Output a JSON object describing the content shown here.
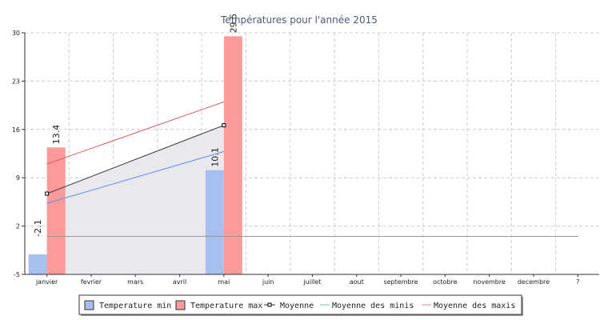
{
  "chart_data": {
    "type": "bar",
    "title": "Températures pour l'année 2015",
    "categories": [
      "janvier",
      "fevrier",
      "mars",
      "avril",
      "mai",
      "juin",
      "juillet",
      "aout",
      "septembre",
      "octobre",
      "novembre",
      "decembre",
      "?"
    ],
    "y_ticks": [
      "30",
      "23",
      "16",
      "9",
      "2",
      "-5"
    ],
    "ylim": [
      -5,
      30
    ],
    "grid": true,
    "legend_position": "bottom",
    "series": [
      {
        "name": "Temperature min",
        "kind": "bar",
        "color": "#a7bfee",
        "values": [
          -2.1,
          null,
          null,
          null,
          10.1,
          null,
          null,
          null,
          null,
          null,
          null,
          null,
          null
        ],
        "labels": [
          "-2.1",
          "",
          "",
          "",
          "10.1",
          "",
          "",
          "",
          "",
          "",
          "",
          "",
          ""
        ]
      },
      {
        "name": "Temperature max",
        "kind": "bar",
        "color": "#fa9a9a",
        "values": [
          13.4,
          null,
          null,
          null,
          29.5,
          null,
          null,
          null,
          null,
          null,
          null,
          null,
          null
        ],
        "labels": [
          "13.4",
          "",
          "",
          "",
          "29.5",
          "",
          "",
          "",
          "",
          "",
          "",
          "",
          ""
        ]
      },
      {
        "name": "Moyenne",
        "kind": "line",
        "color": "#333333",
        "marker": "square",
        "fill": "#e8e9ec",
        "values": [
          6.7,
          null,
          null,
          null,
          16.6,
          null,
          null,
          null,
          null,
          null,
          null,
          null,
          null
        ]
      },
      {
        "name": "Moyenne des minis",
        "kind": "line",
        "color": "#6fc8b5",
        "legend_only": true
      },
      {
        "name": "Moyenne des maxis",
        "kind": "line",
        "color": "#e48a8a",
        "legend_only": true
      }
    ],
    "extra_lines": [
      {
        "kind": "trend",
        "color": "#6a8be0",
        "from": {
          "category": "janvier",
          "value": 5.3
        },
        "to": {
          "category": "mai",
          "value": 12.8
        }
      },
      {
        "kind": "trend",
        "color": "#e05a5a",
        "from": {
          "category": "janvier",
          "value": 11.0
        },
        "to": {
          "category": "mai",
          "value": 20.0
        }
      },
      {
        "kind": "hline",
        "color": "#999999",
        "value": 0.5
      }
    ]
  }
}
